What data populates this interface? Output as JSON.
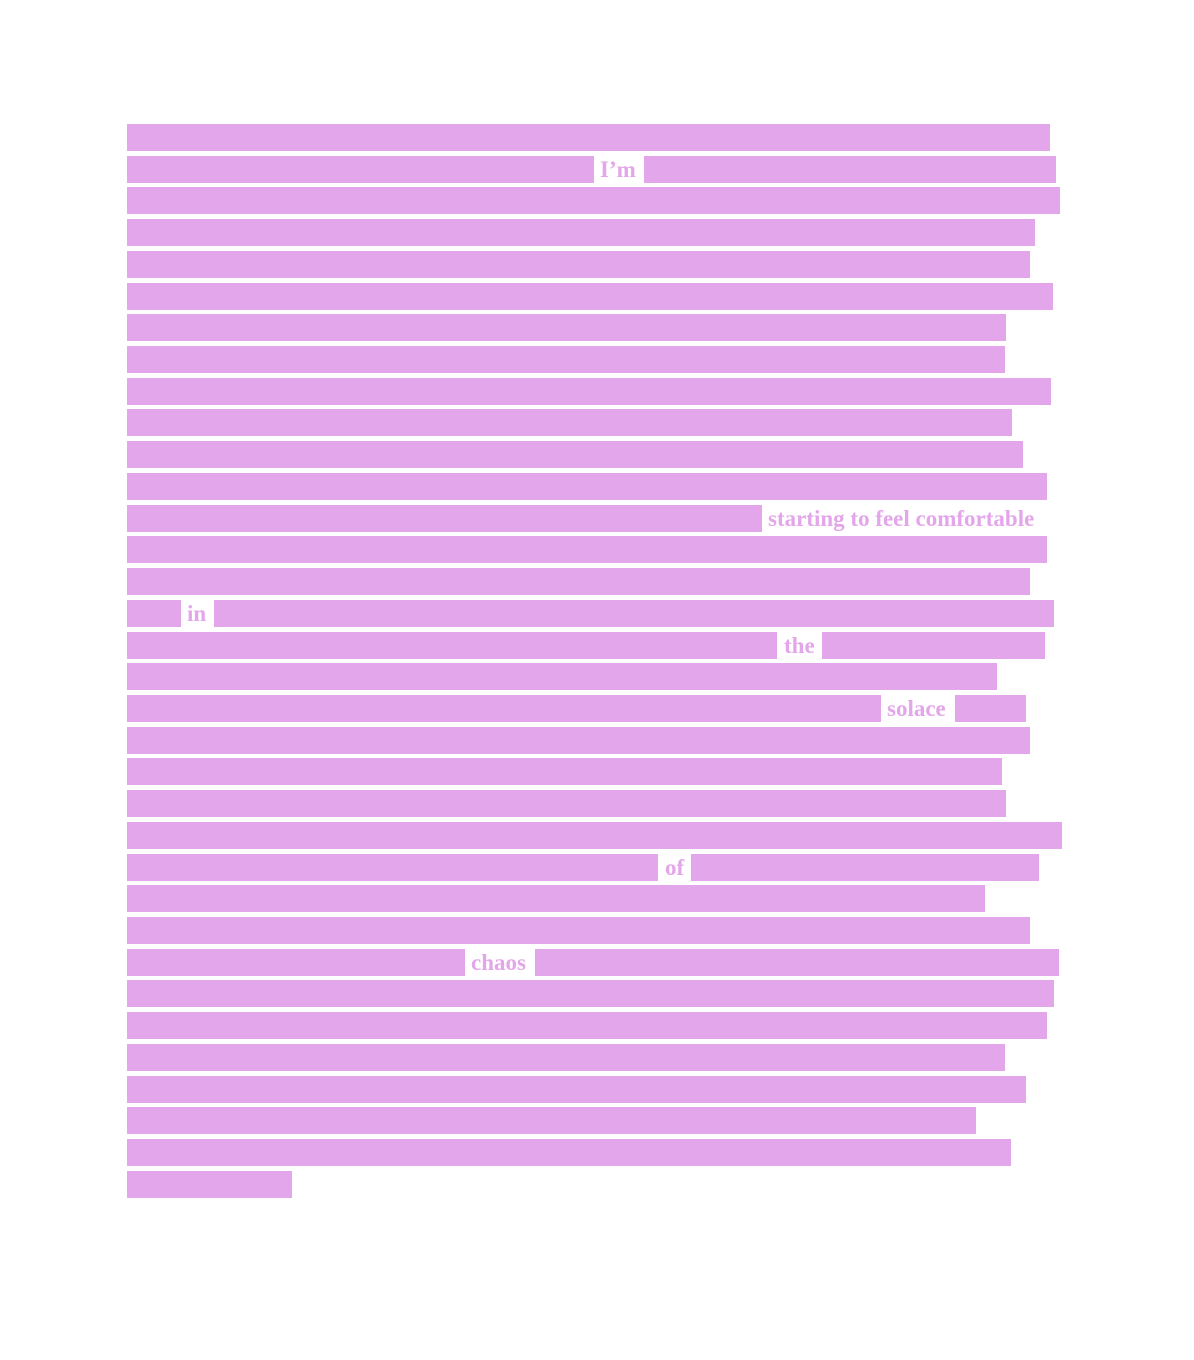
{
  "poem": {
    "words": [
      "I’m",
      "starting to feel comfortable",
      "in",
      "the",
      "solace",
      "of",
      "chaos"
    ]
  },
  "colors": {
    "redaction": "#e4a6ea",
    "text": "#e4a6ea",
    "background": "#ffffff"
  }
}
